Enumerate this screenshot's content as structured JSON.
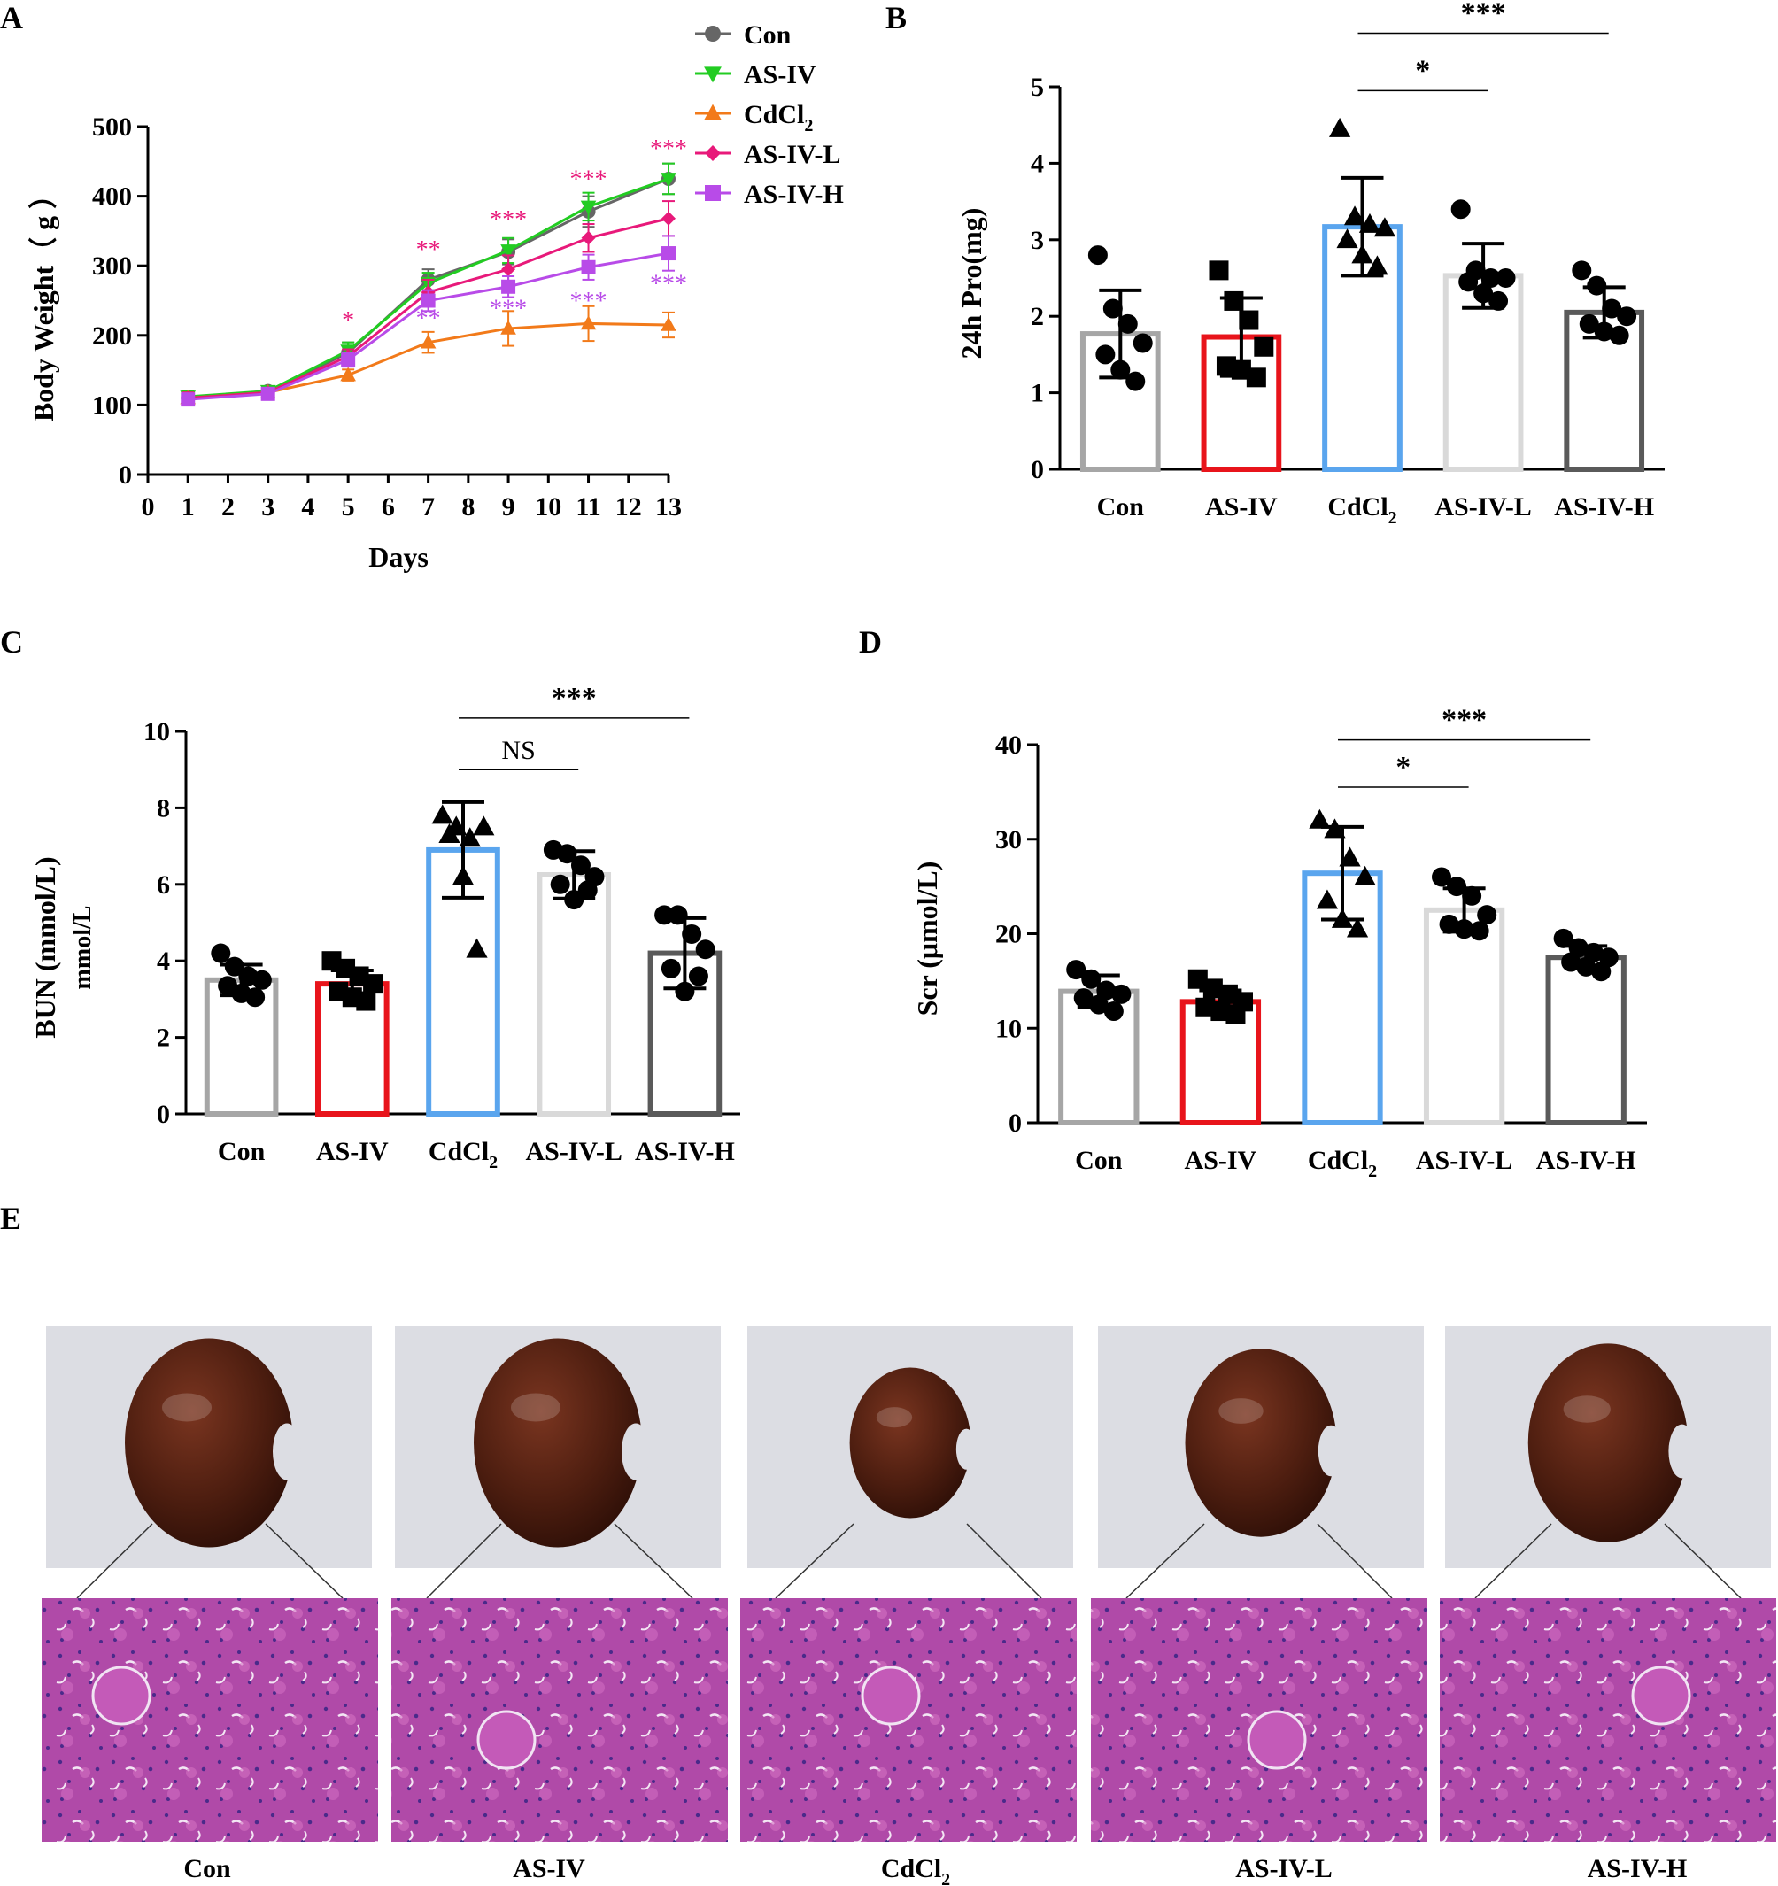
{
  "panel_letters": [
    "A",
    "B",
    "C",
    "D",
    "E"
  ],
  "colors": {
    "con": "#666666",
    "asiv": "#22cc22",
    "cdcl2": "#f27a1a",
    "asivl": "#e8197a",
    "asivh": "#b84be8",
    "bar_con": "#a6a6a6",
    "bar_asiv": "#e8141b",
    "bar_cdcl2": "#5aa5ee",
    "bar_asivl": "#d9d9d9",
    "bar_asivh": "#5a5a5a",
    "tissue_a": "#b04aa8",
    "tissue_b": "#d36fc2",
    "kidney": "#5a2413",
    "photo_bg": "#dcdde3"
  },
  "chart_data": [
    {
      "panel": "A",
      "type": "line",
      "xlabel": "Days",
      "ylabel": "Body Weight（ g ）",
      "xlim": [
        0,
        13
      ],
      "ylim": [
        0,
        500
      ],
      "x_ticks": [
        "0",
        "1",
        "2",
        "3",
        "4",
        "5",
        "6",
        "7",
        "8",
        "9",
        "10",
        "11",
        "12",
        "13"
      ],
      "y_ticks": [
        "0",
        "100",
        "200",
        "300",
        "400",
        "500"
      ],
      "x": [
        1,
        3,
        5,
        7,
        9,
        11,
        13
      ],
      "series": [
        {
          "name": "Con",
          "label_main": "Con",
          "label_sub": "",
          "color": "#666666",
          "marker": "circle",
          "values": [
            110,
            120,
            175,
            280,
            320,
            378,
            425
          ],
          "errors": [
            8,
            6,
            15,
            15,
            18,
            22,
            22
          ]
        },
        {
          "name": "AS-IV",
          "label_main": "AS-IV",
          "label_sub": "",
          "color": "#22cc22",
          "marker": "triangle-down",
          "values": [
            112,
            120,
            178,
            275,
            322,
            385,
            425
          ],
          "errors": [
            8,
            6,
            12,
            15,
            18,
            20,
            22
          ]
        },
        {
          "name": "CdCl2",
          "label_main": "CdCl",
          "label_sub": "2",
          "color": "#f27a1a",
          "marker": "triangle-up",
          "values": [
            110,
            118,
            143,
            190,
            210,
            217,
            215
          ],
          "errors": [
            8,
            6,
            8,
            15,
            25,
            25,
            18
          ]
        },
        {
          "name": "AS-IV-L",
          "label_main": "AS-IV-L",
          "label_sub": "",
          "color": "#e8197a",
          "marker": "diamond",
          "values": [
            110,
            118,
            170,
            262,
            295,
            340,
            368
          ],
          "errors": [
            8,
            6,
            10,
            18,
            20,
            20,
            25
          ]
        },
        {
          "name": "AS-IV-H",
          "label_main": "AS-IV-H",
          "label_sub": "",
          "color": "#b84be8",
          "marker": "square",
          "values": [
            108,
            116,
            165,
            250,
            270,
            298,
            318
          ],
          "errors": [
            8,
            6,
            10,
            15,
            15,
            18,
            25
          ]
        }
      ],
      "annotations": [
        {
          "text": "*",
          "x": 5,
          "y": 210,
          "color": "#e8197a"
        },
        {
          "text": "**",
          "x": 7,
          "y": 312,
          "color": "#e8197a"
        },
        {
          "text": "***",
          "x": 9,
          "y": 355,
          "color": "#e8197a"
        },
        {
          "text": "***",
          "x": 11,
          "y": 413,
          "color": "#e8197a"
        },
        {
          "text": "***",
          "x": 13,
          "y": 457,
          "color": "#e8197a"
        },
        {
          "text": "**",
          "x": 7,
          "y": 213,
          "color": "#b84be8"
        },
        {
          "text": "***",
          "x": 9,
          "y": 227,
          "color": "#b84be8"
        },
        {
          "text": "***",
          "x": 11,
          "y": 238,
          "color": "#b84be8"
        },
        {
          "text": "***",
          "x": 13,
          "y": 263,
          "color": "#b84be8"
        }
      ]
    },
    {
      "panel": "B",
      "type": "bar",
      "ylabel": "24h Pro(mg)",
      "ylim": [
        0,
        5
      ],
      "y_ticks": [
        "0",
        "1",
        "2",
        "3",
        "4",
        "5"
      ],
      "categories": [
        "Con",
        "AS-IV",
        "CdCl2",
        "AS-IV-L",
        "AS-IV-H"
      ],
      "category_labels": [
        {
          "main": "Con",
          "sub": ""
        },
        {
          "main": "AS-IV",
          "sub": ""
        },
        {
          "main": "CdCl",
          "sub": "2"
        },
        {
          "main": "AS-IV-L",
          "sub": ""
        },
        {
          "main": "AS-IV-H",
          "sub": ""
        }
      ],
      "values": [
        1.77,
        1.73,
        3.17,
        2.53,
        2.05
      ],
      "errors": [
        0.57,
        0.51,
        0.64,
        0.42,
        0.33
      ],
      "markers": [
        "circle",
        "square",
        "triangle-up",
        "circle",
        "circle"
      ],
      "points": [
        [
          2.8,
          2.1,
          1.9,
          1.65,
          1.5,
          1.3,
          1.15
        ],
        [
          2.6,
          2.2,
          1.95,
          1.6,
          1.35,
          1.3,
          1.2
        ],
        [
          4.45,
          3.3,
          3.2,
          3.15,
          3.0,
          2.8,
          2.65
        ],
        [
          3.4,
          2.6,
          2.5,
          2.5,
          2.45,
          2.3,
          2.2
        ],
        [
          2.6,
          2.4,
          2.1,
          2.0,
          1.9,
          1.8,
          1.75
        ]
      ],
      "significance": [
        {
          "from": 2,
          "to": 3,
          "text": "*",
          "y": 4.95
        },
        {
          "from": 2,
          "to": 4,
          "text": "***",
          "y": 5.7
        }
      ]
    },
    {
      "panel": "C",
      "type": "bar",
      "ylabel": "BUN (mmol/L)",
      "ylabel2": "mmol/L",
      "ylim": [
        0,
        10
      ],
      "y_ticks": [
        "0",
        "2",
        "4",
        "6",
        "8",
        "10"
      ],
      "categories": [
        "Con",
        "AS-IV",
        "CdCl2",
        "AS-IV-L",
        "AS-IV-H"
      ],
      "category_labels": [
        {
          "main": "Con",
          "sub": ""
        },
        {
          "main": "AS-IV",
          "sub": ""
        },
        {
          "main": "CdCl",
          "sub": "2"
        },
        {
          "main": "AS-IV-L",
          "sub": ""
        },
        {
          "main": "AS-IV-H",
          "sub": ""
        }
      ],
      "values": [
        3.5,
        3.4,
        6.9,
        6.25,
        4.2
      ],
      "errors": [
        0.4,
        0.35,
        1.25,
        0.62,
        0.92
      ],
      "markers": [
        "circle",
        "square",
        "triangle-up",
        "circle",
        "circle"
      ],
      "points": [
        [
          4.2,
          3.85,
          3.6,
          3.5,
          3.35,
          3.15,
          3.05
        ],
        [
          4.0,
          3.8,
          3.6,
          3.4,
          3.2,
          3.05,
          2.95
        ],
        [
          7.8,
          7.5,
          7.2,
          7.5,
          7.3,
          6.2,
          4.3
        ],
        [
          6.9,
          6.8,
          6.5,
          6.2,
          6.0,
          5.6,
          5.85
        ],
        [
          5.2,
          5.2,
          4.7,
          4.3,
          3.8,
          3.2,
          3.6
        ]
      ],
      "significance": [
        {
          "from": 2,
          "to": 3,
          "text": "NS",
          "y": 9.0
        },
        {
          "from": 2,
          "to": 4,
          "text": "***",
          "y": 10.35
        }
      ]
    },
    {
      "panel": "D",
      "type": "bar",
      "ylabel": "Scr (μmol/L)",
      "ylim": [
        0,
        40
      ],
      "y_ticks": [
        "0",
        "10",
        "20",
        "30",
        "40"
      ],
      "categories": [
        "Con",
        "AS-IV",
        "CdCl2",
        "AS-IV-L",
        "AS-IV-H"
      ],
      "category_labels": [
        {
          "main": "Con",
          "sub": ""
        },
        {
          "main": "AS-IV",
          "sub": ""
        },
        {
          "main": "CdCl",
          "sub": "2"
        },
        {
          "main": "AS-IV-L",
          "sub": ""
        },
        {
          "main": "AS-IV-H",
          "sub": ""
        }
      ],
      "values": [
        13.9,
        12.8,
        26.4,
        22.5,
        17.5
      ],
      "errors": [
        1.7,
        1.2,
        4.9,
        2.3,
        1.2
      ],
      "markers": [
        "circle",
        "square",
        "triangle-up",
        "circle",
        "circle"
      ],
      "points": [
        [
          16.2,
          15.2,
          14.0,
          13.6,
          13.2,
          12.5,
          11.8
        ],
        [
          15.2,
          14.2,
          13.6,
          12.8,
          12.2,
          11.8,
          11.5
        ],
        [
          32.0,
          31.0,
          28.0,
          26.0,
          23.5,
          21.5,
          20.5
        ],
        [
          26.0,
          25.0,
          24.0,
          22.0,
          21.0,
          20.5,
          20.3
        ],
        [
          19.5,
          18.5,
          18.0,
          17.5,
          17.0,
          16.5,
          16.0
        ]
      ],
      "significance": [
        {
          "from": 2,
          "to": 3,
          "text": "*",
          "y": 35.5
        },
        {
          "from": 2,
          "to": 4,
          "text": "***",
          "y": 40.5
        }
      ]
    }
  ],
  "panel_e": {
    "labels": [
      {
        "main": "Con",
        "sub": ""
      },
      {
        "main": "AS-IV",
        "sub": ""
      },
      {
        "main": "CdCl",
        "sub": "2"
      },
      {
        "main": "AS-IV-L",
        "sub": ""
      },
      {
        "main": "AS-IV-H",
        "sub": ""
      }
    ],
    "kidney_scale": [
      1.0,
      1.0,
      0.72,
      0.9,
      0.95
    ]
  }
}
